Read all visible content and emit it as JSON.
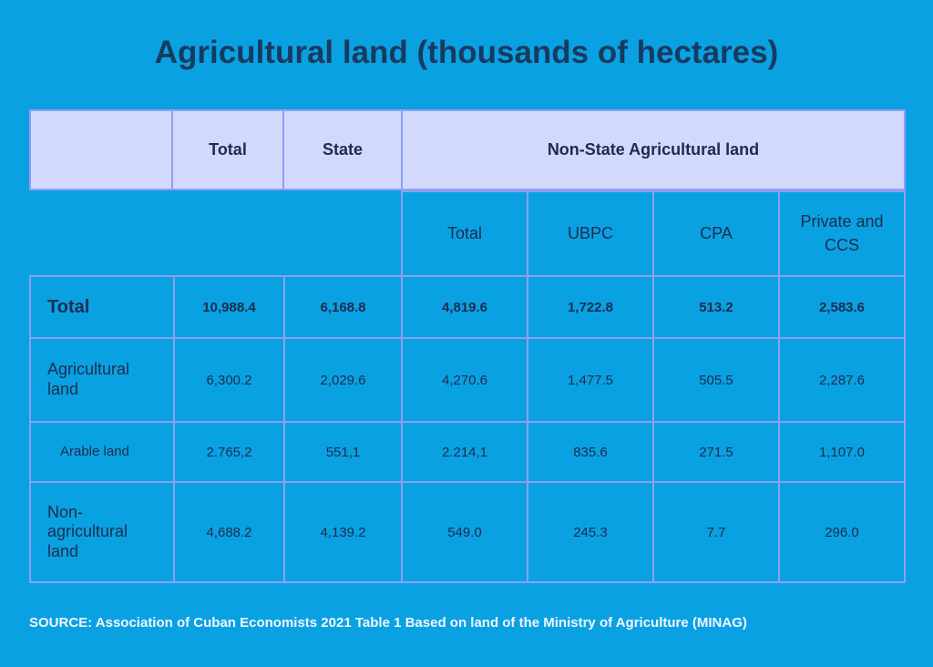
{
  "title": "Agricultural land (thousands of hectares)",
  "table": {
    "header": [
      "Total",
      "State",
      "Non-State Agricultural land"
    ],
    "subheader": [
      "Total",
      "UBPC",
      "CPA",
      "Private and CCS"
    ],
    "rows": [
      [
        "Total",
        "10,988.4",
        "6,168.8",
        "4,819.6",
        "1,722.8",
        "513.2",
        "2,583.6"
      ],
      [
        "Agricultural land",
        "6,300.2",
        "2,029.6",
        "4,270.6",
        "1,477.5",
        "505.5",
        "2,287.6"
      ],
      [
        "Arable land",
        "2.765,2",
        "551,1",
        "2.214,1",
        "835.6",
        "271.5",
        "1,107.0"
      ],
      [
        "Non-agricultural land",
        "4,688.2",
        "4,139.2",
        "549.0",
        "245.3",
        "7.7",
        "296.0"
      ]
    ]
  },
  "source": "SOURCE: Association of Cuban Economists 2021 Table 1 Based on land of the Ministry of Agriculture (MINAG)"
}
